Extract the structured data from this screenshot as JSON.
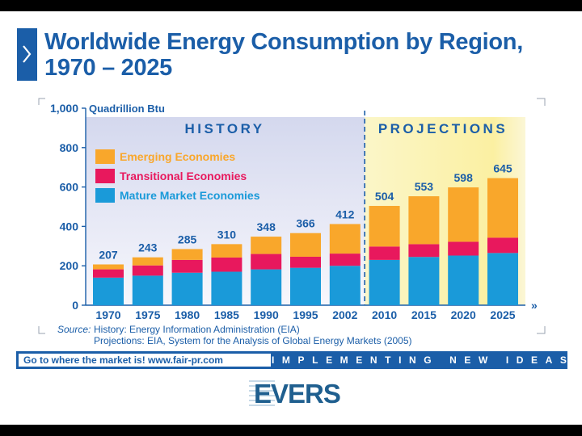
{
  "page": {
    "title_line1": "Worldwide Energy Consumption by Region,",
    "title_line2": "1970 – 2025"
  },
  "colors": {
    "mature": "#1a9ad9",
    "transitional": "#e8185d",
    "emerging": "#f9a72b",
    "brand_blue": "#1b5ea8",
    "label_blue": "#1b5ea8"
  },
  "chart_data": {
    "type": "bar",
    "stacked": true,
    "unit_label": "Quadrillion Btu",
    "ylim": [
      0,
      1000
    ],
    "yticks": [
      "1,000",
      "800",
      "600",
      "400",
      "200",
      "0"
    ],
    "ytick_values": [
      1000,
      800,
      600,
      400,
      200,
      0
    ],
    "categories": [
      "1970",
      "1975",
      "1980",
      "1985",
      "1990",
      "1995",
      "2002",
      "2010",
      "2015",
      "2020",
      "2025"
    ],
    "totals": [
      207,
      243,
      285,
      310,
      348,
      366,
      412,
      504,
      553,
      598,
      645
    ],
    "total_labels": [
      "207",
      "243",
      "285",
      "310",
      "348",
      "366",
      "412",
      "504",
      "553",
      "598",
      "645"
    ],
    "series": [
      {
        "name": "Mature Market Economies",
        "color": "#1a9ad9",
        "values": [
          140,
          150,
          165,
          170,
          182,
          190,
          200,
          230,
          245,
          252,
          265
        ]
      },
      {
        "name": "Transitional Economies",
        "color": "#e8185d",
        "values": [
          42,
          52,
          65,
          72,
          78,
          56,
          62,
          68,
          65,
          70,
          78
        ]
      },
      {
        "name": "Emerging Economies",
        "color": "#f9a72b",
        "values": [
          25,
          41,
          55,
          68,
          88,
          120,
          150,
          206,
          243,
          276,
          302
        ]
      }
    ],
    "legend_order": [
      "Emerging Economies",
      "Transitional Economies",
      "Mature Market Economies"
    ],
    "legend_placement": "top-left",
    "sections": {
      "history_label": "HISTORY",
      "projections_label": "PROJECTIONS",
      "history_categories": 7,
      "projection_categories": 4
    },
    "grid": false
  },
  "source": {
    "label": "Source:",
    "history_line": "History: Energy Information Administration (EIA)",
    "projections_line": "Projections: EIA, System for the Analysis of Global Energy Markets (2005)"
  },
  "footer": {
    "tagline": "Go to where the market is!   www.fair-pr.com",
    "slogan": "IMPLEMENTING NEW IDEAS",
    "logo": "EVERS"
  }
}
